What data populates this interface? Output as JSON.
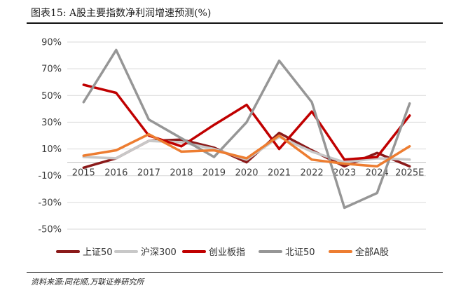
{
  "figure": {
    "title": "图表15:  A股主要指数净利润增速预测(%)",
    "source": "资料来源:同花顺,万联证券研究所"
  },
  "chart_data": {
    "type": "line",
    "categories": [
      "2015",
      "2016",
      "2017",
      "2018",
      "2019",
      "2020",
      "2021",
      "2022",
      "2023",
      "2024",
      "2025E"
    ],
    "ylim": [
      -50,
      90
    ],
    "yticks": [
      -50,
      -30,
      -10,
      10,
      30,
      50,
      70,
      90
    ],
    "ytick_labels": [
      "-50%",
      "-30%",
      "-10%",
      "10%",
      "30%",
      "50%",
      "70%",
      "90%"
    ],
    "grid": true,
    "legend_position": "bottom",
    "series": [
      {
        "name": "上证50",
        "color": "#8b1a1a",
        "values": [
          -4,
          3,
          16,
          17,
          11,
          0,
          22,
          9,
          -3,
          7,
          -3
        ]
      },
      {
        "name": "沪深300",
        "color": "#c8c8c8",
        "values": [
          4,
          3,
          16,
          15,
          10,
          2,
          19,
          8,
          0,
          3,
          2
        ]
      },
      {
        "name": "创业板指",
        "color": "#c00000",
        "values": [
          58,
          52,
          20,
          12,
          28,
          43,
          10,
          38,
          2,
          4,
          35
        ]
      },
      {
        "name": "北证50",
        "color": "#969696",
        "values": [
          45,
          84,
          32,
          18,
          4,
          30,
          76,
          45,
          -34,
          -23,
          44
        ]
      },
      {
        "name": "全部A股",
        "color": "#ed7d31",
        "values": [
          5,
          9,
          21,
          8,
          9,
          3,
          20,
          2,
          -1,
          -3,
          12
        ]
      }
    ]
  }
}
